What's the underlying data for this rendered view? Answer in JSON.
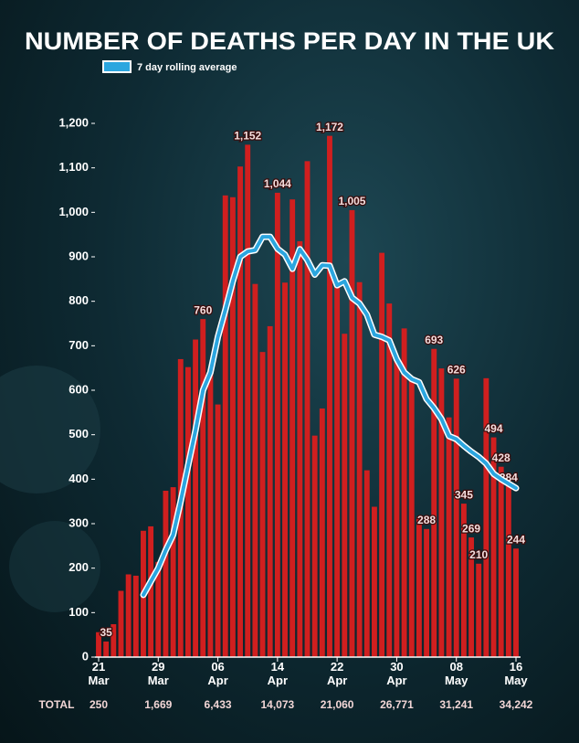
{
  "chart_data": {
    "type": "bar",
    "title": "NUMBER OF DEATHS PER DAY IN THE UK",
    "categories": [
      "21 Mar",
      null,
      null,
      null,
      null,
      null,
      null,
      null,
      "29 Mar",
      null,
      null,
      null,
      null,
      null,
      null,
      null,
      "06 Apr",
      null,
      null,
      null,
      null,
      null,
      null,
      null,
      "14 Apr",
      null,
      null,
      null,
      null,
      null,
      null,
      null,
      "22 Apr",
      null,
      null,
      null,
      null,
      null,
      null,
      null,
      "30 Apr",
      null,
      null,
      null,
      null,
      null,
      null,
      null,
      "08 May",
      null,
      null,
      null,
      null,
      null,
      null,
      null,
      "16 May"
    ],
    "bars": {
      "color": "#d01f1f",
      "values": [
        56,
        35,
        74,
        149,
        186,
        183,
        284,
        294,
        214,
        374,
        382,
        670,
        652,
        714,
        760,
        644,
        568,
        1038,
        1034,
        1103,
        1152,
        839,
        686,
        744,
        1044,
        842,
        1029,
        935,
        1115,
        498,
        559,
        1172,
        837,
        727,
        1005,
        843,
        420,
        338,
        909,
        795,
        674,
        739,
        621,
        315,
        288,
        693,
        649,
        539,
        626,
        345,
        269,
        210,
        627,
        494,
        428,
        384,
        244
      ],
      "value_labels": [
        null,
        "35",
        null,
        null,
        null,
        null,
        null,
        null,
        null,
        null,
        null,
        null,
        null,
        null,
        "760",
        null,
        null,
        null,
        null,
        null,
        "1,152",
        null,
        null,
        null,
        "1,044",
        null,
        null,
        null,
        null,
        null,
        null,
        "1,172",
        null,
        null,
        "1,005",
        null,
        null,
        null,
        null,
        null,
        null,
        null,
        null,
        null,
        "288",
        "693",
        null,
        null,
        "626",
        "345",
        "269",
        "210",
        null,
        "494",
        "428",
        "384",
        "244"
      ]
    },
    "series": [
      {
        "name": "7 day rolling average",
        "color": "#2ba6df",
        "values": [
          null,
          null,
          null,
          null,
          null,
          null,
          140,
          170,
          200,
          240,
          275,
          350,
          430,
          510,
          600,
          640,
          720,
          780,
          845,
          900,
          912,
          915,
          945,
          945,
          918,
          905,
          873,
          917,
          893,
          860,
          881,
          880,
          836,
          845,
          808,
          795,
          770,
          725,
          720,
          712,
          670,
          640,
          625,
          618,
          580,
          560,
          535,
          497,
          490,
          475,
          462,
          450,
          435,
          412,
          400,
          390,
          380
        ]
      }
    ],
    "totals": {
      "label": "TOTAL",
      "values": [
        250,
        1669,
        6433,
        14073,
        21060,
        26771,
        31241,
        34242
      ],
      "value_labels": [
        "250",
        "1,669",
        "6,433",
        "14,073",
        "21,060",
        "26,771",
        "31,241",
        "34,242"
      ]
    },
    "ylim": [
      0,
      1200
    ],
    "yticks": [
      0,
      100,
      200,
      300,
      400,
      500,
      600,
      700,
      800,
      900,
      {
        "value": 1000,
        "label": "1,000"
      },
      {
        "value": 1100,
        "label": "1,100"
      },
      {
        "value": 1200,
        "label": "1,200"
      }
    ],
    "grid": false
  }
}
